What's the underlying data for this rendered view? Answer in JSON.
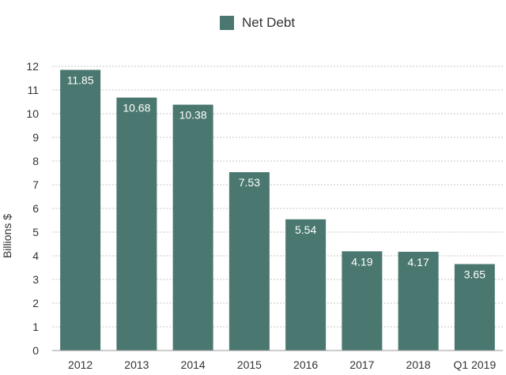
{
  "chart_data": {
    "type": "bar",
    "categories": [
      "2012",
      "2013",
      "2014",
      "2015",
      "2016",
      "2017",
      "2018",
      "Q1 2019"
    ],
    "series": [
      {
        "name": "Net Debt",
        "values": [
          11.85,
          10.68,
          10.38,
          7.53,
          5.54,
          4.19,
          4.17,
          3.65
        ],
        "color": "#4a7870"
      }
    ],
    "data_labels": [
      "11.85",
      "10.68",
      "10.38",
      "7.53",
      "5.54",
      "4.19",
      "4.17",
      "3.65"
    ],
    "ylabel": "Billions $",
    "xlabel": "",
    "ylim": [
      0,
      12
    ],
    "yticks": [
      0,
      1,
      2,
      3,
      4,
      5,
      6,
      7,
      8,
      9,
      10,
      11,
      12
    ],
    "grid": true,
    "gridline_style": "dotted",
    "legend_position": "top-center"
  }
}
